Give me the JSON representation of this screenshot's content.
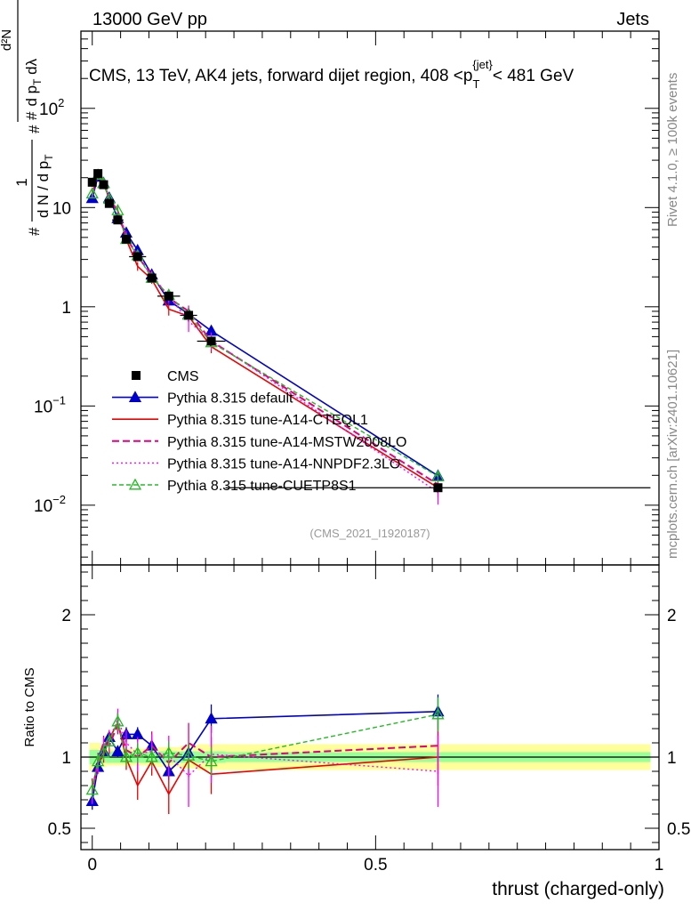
{
  "header": {
    "left": "13000 GeV pp",
    "right": "Jets"
  },
  "title": {
    "main": "CMS, 13 TeV, AK4 jets, forward dijet region, 408 <p",
    "sub": "T",
    "sup": "{jet}",
    "tail": "< 481 GeV"
  },
  "side_labels": {
    "rivet": "Rivet 4.1.0, ≥ 100k events",
    "mcplots": "mcplots.cern.ch [arXiv:2401.10621]"
  },
  "analysis_id": "(CMS_2021_I1920187)",
  "ylabel_main": {
    "prefix": "#",
    "frac1_num": "1",
    "frac1_den": "d N / d p",
    "frac1_den_sub": "T",
    "frac2_num": "d²N",
    "frac2_den": "d p",
    "frac2_den_sub": "T",
    "frac2_den_tail": " dλ",
    "inner_num": "#",
    "inner_den": "#"
  },
  "colors": {
    "cms": "#000000",
    "default": "#0000cc",
    "cteql1": "#ee0000",
    "mstw": "#e4007c",
    "nnpdf": "#ff00ff",
    "cuetp": "#22bb22",
    "band_inner": "#99ff99",
    "band_outer": "#ffff99"
  },
  "chart_data": {
    "type": "line",
    "main": {
      "yscale": "log",
      "ylim": [
        0.0025,
        600
      ],
      "xlim": [
        -0.02,
        1.0
      ],
      "yticks": [
        {
          "value": 0.01,
          "label": "10",
          "exp": "−2"
        },
        {
          "value": 0.1,
          "label": "10",
          "exp": "−1"
        },
        {
          "value": 1,
          "label": "1",
          "exp": ""
        },
        {
          "value": 10,
          "label": "10",
          "exp": ""
        },
        {
          "value": 100,
          "label": "10",
          "exp": "2"
        }
      ]
    },
    "ratio": {
      "ylabel": "Ratio to CMS",
      "ylim": [
        0.35,
        2.35
      ],
      "yticks": [
        {
          "value": 0.5,
          "label": "0.5"
        },
        {
          "value": 1,
          "label": "1"
        },
        {
          "value": 2,
          "label": "2"
        }
      ]
    },
    "xlabel": "thrust (charged-only)",
    "xticks": [
      {
        "value": 0,
        "label": "0"
      },
      {
        "value": 0.5,
        "label": "0.5"
      },
      {
        "value": 1,
        "label": "1"
      }
    ],
    "x": [
      0.0,
      0.01,
      0.02,
      0.03,
      0.045,
      0.06,
      0.08,
      0.105,
      0.135,
      0.17,
      0.21,
      0.61
    ],
    "bin_edges": [
      -0.005,
      0.005,
      0.015,
      0.025,
      0.035,
      0.055,
      0.065,
      0.095,
      0.115,
      0.155,
      0.185,
      0.235,
      0.985
    ],
    "cms": {
      "name": "CMS",
      "values": [
        18.0,
        22.0,
        17.0,
        11.0,
        7.5,
        4.8,
        3.2,
        1.95,
        1.28,
        0.82,
        0.45,
        0.015
      ],
      "band_inner": [
        0.05,
        0.05,
        0.04,
        0.04,
        0.04,
        0.04,
        0.04,
        0.04,
        0.04,
        0.04,
        0.04,
        0.035
      ],
      "band_outer": [
        0.1,
        0.1,
        0.07,
        0.06,
        0.06,
        0.06,
        0.06,
        0.06,
        0.07,
        0.08,
        0.09,
        0.09
      ]
    },
    "legend": [
      "CMS",
      "Pythia 8.315 default",
      "Pythia 8.315 tune-A14-CTEQL1",
      "Pythia 8.315 tune-A14-MSTW2008LO",
      "Pythia 8.315 tune-A14-NNPDF2.3LO",
      "Pythia 8.315 tune-CUETP8S1"
    ],
    "series": [
      {
        "name": "Pythia 8.315 default",
        "key": "default",
        "style": "solid",
        "marker": "filled-triangle",
        "ratios": [
          0.69,
          0.93,
          1.04,
          1.14,
          1.04,
          1.16,
          1.16,
          1.08,
          0.9,
          1.03,
          1.27,
          1.32
        ],
        "errors": [
          0.06,
          0.04,
          0.04,
          0.04,
          0.04,
          0.05,
          0.05,
          0.05,
          0.06,
          0.07,
          0.1,
          0.12
        ]
      },
      {
        "name": "Pythia 8.315 tune-A14-CTEQL1",
        "key": "cteql1",
        "style": "solid",
        "marker": "none",
        "ratios": [
          0.78,
          0.96,
          1.01,
          1.13,
          1.24,
          0.99,
          0.8,
          0.97,
          0.74,
          0.98,
          0.88,
          1.0
        ],
        "errors": [
          0.07,
          0.05,
          0.05,
          0.06,
          0.07,
          0.08,
          0.1,
          0.1,
          0.14,
          0.12,
          0.14,
          0.2
        ]
      },
      {
        "name": "Pythia 8.315 tune-A14-MSTW2008LO",
        "key": "mstw",
        "style": "dash",
        "marker": "none",
        "ratios": [
          0.75,
          0.98,
          1.1,
          1.08,
          1.23,
          1.05,
          1.0,
          1.08,
          0.96,
          1.1,
          1.0,
          1.08
        ],
        "errors": [
          0.07,
          0.05,
          0.05,
          0.06,
          0.07,
          0.08,
          0.1,
          0.1,
          0.12,
          0.14,
          0.14,
          0.2
        ]
      },
      {
        "name": "Pythia 8.315 tune-A14-NNPDF2.3LO",
        "key": "nnpdf",
        "style": "dot",
        "marker": "none",
        "ratios": [
          0.75,
          0.94,
          1.08,
          1.12,
          1.27,
          1.1,
          1.02,
          1.04,
          1.01,
          0.87,
          1.02,
          0.9
        ],
        "errors": [
          0.08,
          0.06,
          0.06,
          0.07,
          0.07,
          0.09,
          0.12,
          0.12,
          0.14,
          0.22,
          0.2,
          0.25
        ]
      },
      {
        "name": "Pythia 8.315 tune-CUETP8S1",
        "key": "cuetp",
        "style": "dash-thin",
        "marker": "open-triangle",
        "ratios": [
          0.77,
          0.97,
          1.03,
          1.11,
          1.25,
          1.0,
          1.03,
          1.0,
          1.03,
          1.01,
          0.97,
          1.3
        ],
        "errors": [
          0.06,
          0.05,
          0.05,
          0.05,
          0.06,
          0.06,
          0.07,
          0.07,
          0.08,
          0.09,
          0.1,
          0.12
        ]
      }
    ]
  }
}
